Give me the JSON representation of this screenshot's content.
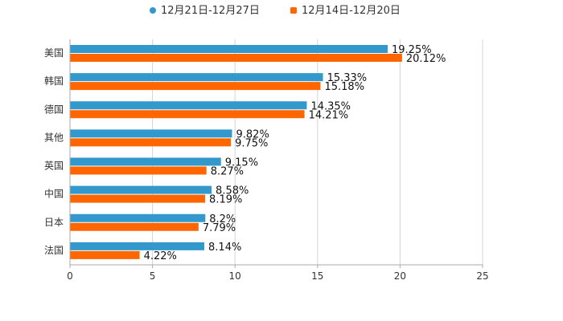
{
  "chart_data": {
    "type": "bar",
    "orientation": "horizontal",
    "categories": [
      "美国",
      "韩国",
      "德国",
      "其他",
      "英国",
      "中国",
      "日本",
      "法国"
    ],
    "series": [
      {
        "name": "12月21日-12月27日",
        "color": "#3399cc",
        "values": [
          19.25,
          15.33,
          14.35,
          9.82,
          9.15,
          8.58,
          8.2,
          8.14
        ],
        "labels": [
          "19.25%",
          "15.33%",
          "14.35%",
          "9.82%",
          "9.15%",
          "8.58%",
          "8.2%",
          "8.14%"
        ]
      },
      {
        "name": "12月14日-12月20日",
        "color": "#ff6600",
        "values": [
          20.12,
          15.18,
          14.21,
          9.75,
          8.27,
          8.19,
          7.79,
          4.22
        ],
        "labels": [
          "20.12%",
          "15.18%",
          "14.21%",
          "9.75%",
          "8.27%",
          "8.19%",
          "7.79%",
          "4.22%"
        ]
      }
    ],
    "xlim": [
      0,
      25
    ],
    "xticks": [
      0,
      5,
      10,
      15,
      20,
      25
    ],
    "xtick_labels": [
      "0",
      "5",
      "10",
      "15",
      "20",
      "25"
    ],
    "grid": true,
    "legend_position": "top-center"
  }
}
